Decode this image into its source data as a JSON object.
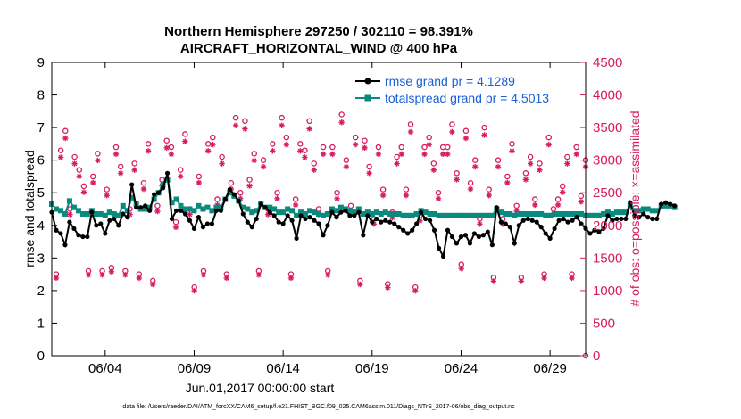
{
  "colors": {
    "rmse": "#000000",
    "spread": "#0a8a7e",
    "obs": "#d81b60",
    "legend_text": "#1a5fd6"
  },
  "chart_data": {
    "type": "line",
    "title": "Northern Hemisphere 297250 / 302110 = 98.391%",
    "subtitle": "AIRCRAFT_HORIZONTAL_WIND @ 400 hPa",
    "xlabel": "Jun.01,2017 00:00:00 start",
    "ylabel": "rmse and totalspread",
    "y2label": "# of obs: o=possible; ×=assimilated",
    "xlim": [
      1.0,
      31.0
    ],
    "ylim": [
      0,
      9
    ],
    "y2lim": [
      0,
      4500
    ],
    "x_ticks": [
      4,
      9,
      14,
      19,
      24,
      29
    ],
    "x_tick_labels": [
      "06/04",
      "06/09",
      "06/14",
      "06/19",
      "06/24",
      "06/29"
    ],
    "y_ticks": [
      "0",
      "1",
      "2",
      "3",
      "4",
      "5",
      "6",
      "7",
      "8",
      "9"
    ],
    "y2_ticks": [
      "0",
      "500",
      "1000",
      "1500",
      "2000",
      "2500",
      "3000",
      "3500",
      "4000",
      "4500"
    ],
    "x_start": 1.0,
    "x_step": 0.25,
    "series": [
      {
        "name": "rmse grand pr = 4.1289",
        "axis": "left",
        "marker": "circle",
        "values": [
          4.4,
          3.85,
          3.75,
          3.4,
          4.1,
          3.9,
          3.7,
          3.65,
          3.65,
          4.4,
          4.0,
          4.05,
          3.75,
          4.15,
          4.2,
          4.0,
          4.35,
          4.25,
          5.25,
          4.55,
          4.55,
          4.6,
          4.45,
          4.95,
          5.0,
          5.15,
          5.6,
          4.2,
          4.45,
          4.45,
          4.35,
          4.15,
          3.9,
          4.25,
          3.95,
          4.05,
          4.05,
          4.45,
          4.45,
          4.8,
          5.1,
          4.95,
          4.75,
          4.35,
          4.1,
          3.95,
          4.2,
          4.65,
          4.55,
          4.4,
          4.3,
          4.1,
          4.05,
          4.3,
          4.15,
          3.6,
          4.3,
          4.2,
          4.25,
          4.15,
          4.05,
          3.7,
          4.0,
          4.4,
          4.25,
          4.4,
          4.45,
          4.3,
          4.3,
          4.4,
          3.7,
          4.3,
          4.1,
          4.2,
          4.1,
          4.15,
          4.1,
          4.05,
          3.95,
          3.85,
          3.75,
          3.85,
          4.05,
          4.4,
          4.2,
          4.15,
          3.85,
          3.3,
          3.05,
          3.85,
          3.65,
          3.45,
          3.65,
          3.7,
          3.45,
          3.75,
          3.65,
          3.7,
          3.8,
          3.4,
          4.55,
          4.1,
          4.05,
          3.95,
          3.45,
          4.0,
          4.15,
          4.2,
          4.15,
          4.1,
          3.95,
          3.75,
          3.6,
          3.9,
          4.15,
          4.2,
          4.1,
          4.15,
          4.25,
          4.05,
          3.9,
          3.75,
          3.85,
          3.8,
          3.9,
          4.3,
          4.15,
          4.2,
          4.2,
          4.2,
          4.7,
          4.3,
          4.25,
          4.35,
          4.25,
          4.2,
          4.2,
          4.65,
          4.7,
          4.65,
          4.6
        ]
      },
      {
        "name": "totalspread grand pr = 4.5013",
        "axis": "left",
        "marker": "square",
        "values": [
          4.65,
          4.5,
          4.45,
          4.35,
          4.75,
          4.55,
          4.45,
          4.35,
          4.35,
          4.45,
          4.35,
          4.35,
          4.3,
          4.4,
          4.35,
          4.3,
          4.6,
          4.45,
          4.85,
          4.65,
          4.5,
          4.5,
          4.55,
          4.8,
          5.0,
          5.25,
          5.4,
          4.7,
          4.8,
          4.6,
          4.5,
          4.5,
          4.45,
          4.6,
          4.5,
          4.55,
          4.45,
          4.55,
          4.55,
          4.8,
          5.0,
          4.9,
          4.75,
          4.55,
          4.5,
          4.4,
          4.45,
          4.65,
          4.55,
          4.55,
          4.5,
          4.4,
          4.4,
          4.5,
          4.45,
          4.3,
          4.4,
          4.35,
          4.45,
          4.4,
          4.35,
          4.3,
          4.35,
          4.5,
          4.45,
          4.55,
          4.5,
          4.45,
          4.4,
          4.5,
          4.35,
          4.4,
          4.35,
          4.4,
          4.35,
          4.4,
          4.35,
          4.35,
          4.35,
          4.3,
          4.3,
          4.3,
          4.35,
          4.45,
          4.4,
          4.35,
          4.35,
          4.3,
          4.3,
          4.3,
          4.3,
          4.3,
          4.3,
          4.3,
          4.3,
          4.3,
          4.3,
          4.3,
          4.3,
          4.3,
          4.5,
          4.4,
          4.35,
          4.35,
          4.3,
          4.35,
          4.35,
          4.35,
          4.35,
          4.35,
          4.35,
          4.3,
          4.3,
          4.35,
          4.35,
          4.35,
          4.35,
          4.35,
          4.35,
          4.35,
          4.3,
          4.3,
          4.3,
          4.3,
          4.35,
          4.4,
          4.35,
          4.4,
          4.4,
          4.4,
          4.6,
          4.45,
          4.45,
          4.5,
          4.5,
          4.45,
          4.45,
          4.6,
          4.6,
          4.6,
          4.55
        ]
      }
    ],
    "obs_possible": [
      1250,
      3150,
      3450,
      2250,
      3050,
      2850,
      2600,
      1300,
      2750,
      3100,
      1300,
      2550,
      1350,
      3200,
      2900,
      1300,
      2250,
      2950,
      1250,
      2650,
      3250,
      1150,
      2300,
      2700,
      3300,
      3200,
      2050,
      2850,
      3400,
      2250,
      1050,
      2750,
      1300,
      3250,
      3350,
      2400,
      3050,
      1250,
      2650,
      3650,
      2500,
      3600,
      2700,
      3100,
      1300,
      3000,
      2250,
      3250,
      2500,
      3650,
      3350,
      1250,
      2400,
      3250,
      3150,
      3600,
      2950,
      2250,
      3200,
      1300,
      3200,
      2500,
      3700,
      3000,
      2300,
      3350,
      1150,
      3300,
      2900,
      2100,
      3200,
      2550,
      1100,
      2200,
      3050,
      3200,
      2550,
      3550,
      1050,
      2150,
      3200,
      3350,
      2950,
      2500,
      3200,
      3200,
      3550,
      2800,
      1400,
      3450,
      2650,
      3000,
      2100,
      3500,
      2550,
      1200,
      3000,
      2100,
      2750,
      3250,
      2300,
      1200,
      2800,
      3050,
      2400,
      2950,
      1250,
      3350,
      2250,
      2400,
      2600,
      3050,
      1250,
      3200,
      2450,
      3000
    ]
  },
  "legend": {
    "rmse_label": "rmse grand pr = 4.1289",
    "spread_label": "totalspread grand pr = 4.5013"
  },
  "footnote": "data file: /Users/raeder/DAI/ATM_forcXX/CAM6_setup/f.e21.FHIST_BGC.f09_025.CAM6assim.011/Diags_NTrS_2017-06/obs_diag_output.nc"
}
